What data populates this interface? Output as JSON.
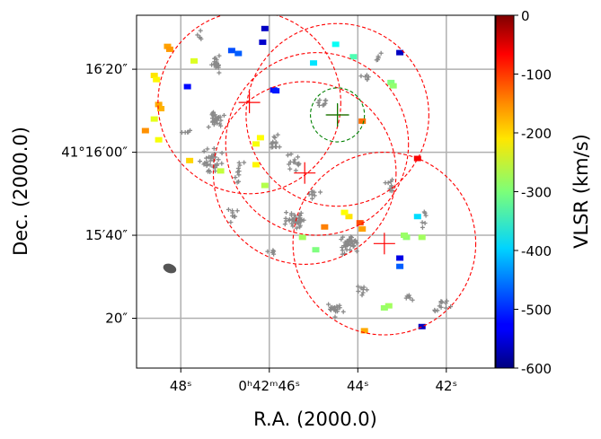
{
  "chart_data": {
    "type": "scatter",
    "title": "",
    "xlabel": "R.A. (2000.0)",
    "ylabel": "Dec. (2000.0)",
    "x_unit": "seconds of R.A. past 0h42m",
    "y_unit": "arcseconds of Dec. past 41°15′",
    "xlim": [
      49.0,
      40.9
    ],
    "ylim": [
      8.0,
      93.0
    ],
    "x_ticks": [
      {
        "value": 48,
        "label": "48ˢ"
      },
      {
        "value": 46,
        "label": "0ʰ42ᵐ46ˢ"
      },
      {
        "value": 44,
        "label": "44ˢ"
      },
      {
        "value": 42,
        "label": "42ˢ"
      }
    ],
    "y_ticks": [
      {
        "value": 20,
        "label": "20″"
      },
      {
        "value": 40,
        "label": "15′40″"
      },
      {
        "value": 60,
        "label": "41°16′00″"
      },
      {
        "value": 80,
        "label": "16′20″"
      }
    ],
    "grid": true,
    "colorbar": {
      "label": "VLSR (km/s)",
      "range": [
        -600,
        0
      ],
      "colormap": "jet",
      "ticks": [
        0,
        -100,
        -200,
        -300,
        -400,
        -500,
        -600
      ],
      "tick_labels": [
        "0",
        "-100",
        "-200",
        "-300",
        "-400",
        "-500",
        "-600"
      ]
    },
    "circles": [
      {
        "name": "field-1",
        "ra_s": 46.45,
        "dec_s": 72.0,
        "radius_arcsec": 22.0,
        "color": "#ff0000",
        "style": "dashed",
        "cross": true
      },
      {
        "name": "field-2",
        "ra_s": 44.46,
        "dec_s": 69.0,
        "radius_arcsec": 22.0,
        "color": "#ff0000",
        "style": "dashed",
        "cross": true
      },
      {
        "name": "field-3",
        "ra_s": 44.92,
        "dec_s": 62.0,
        "radius_arcsec": 22.0,
        "color": "#ff0000",
        "style": "dashed",
        "cross": false
      },
      {
        "name": "field-4",
        "ra_s": 45.2,
        "dec_s": 55.0,
        "radius_arcsec": 22.0,
        "color": "#ff0000",
        "style": "dashed",
        "cross": true
      },
      {
        "name": "field-5",
        "ra_s": 43.4,
        "dec_s": 38.0,
        "radius_arcsec": 22.0,
        "color": "#ff0000",
        "style": "dashed",
        "cross": true
      },
      {
        "name": "target",
        "ra_s": 44.46,
        "dec_s": 69.0,
        "radius_arcsec": 6.5,
        "color": "#008000",
        "style": "dashed",
        "cross": true
      }
    ],
    "gray_clumps": [
      {
        "ra": 47.2,
        "dec": 81,
        "n": 20,
        "sx": 0.11,
        "sy": 1.5
      },
      {
        "ra": 47.2,
        "dec": 68,
        "n": 28,
        "sx": 0.14,
        "sy": 1.4
      },
      {
        "ra": 47.3,
        "dec": 58,
        "n": 34,
        "sx": 0.15,
        "sy": 2.0
      },
      {
        "ra": 46.7,
        "dec": 55,
        "n": 10,
        "sx": 0.1,
        "sy": 2.0
      },
      {
        "ra": 45.9,
        "dec": 61,
        "n": 14,
        "sx": 0.1,
        "sy": 2.0
      },
      {
        "ra": 45.4,
        "dec": 58,
        "n": 14,
        "sx": 0.12,
        "sy": 1.5
      },
      {
        "ra": 45.4,
        "dec": 44,
        "n": 36,
        "sx": 0.16,
        "sy": 1.2
      },
      {
        "ra": 45.0,
        "dec": 50,
        "n": 8,
        "sx": 0.1,
        "sy": 1.0
      },
      {
        "ra": 44.2,
        "dec": 38,
        "n": 42,
        "sx": 0.15,
        "sy": 1.5
      },
      {
        "ra": 43.3,
        "dec": 52,
        "n": 10,
        "sx": 0.1,
        "sy": 1.2
      },
      {
        "ra": 43.8,
        "dec": 78,
        "n": 6,
        "sx": 0.08,
        "sy": 1.0
      },
      {
        "ra": 44.8,
        "dec": 72,
        "n": 8,
        "sx": 0.1,
        "sy": 1.0
      },
      {
        "ra": 44.5,
        "dec": 22,
        "n": 18,
        "sx": 0.1,
        "sy": 1.4
      },
      {
        "ra": 43.9,
        "dec": 27,
        "n": 8,
        "sx": 0.1,
        "sy": 1.0
      },
      {
        "ra": 42.9,
        "dec": 25,
        "n": 6,
        "sx": 0.1,
        "sy": 1.0
      },
      {
        "ra": 42.1,
        "dec": 23,
        "n": 12,
        "sx": 0.14,
        "sy": 1.2
      },
      {
        "ra": 47.9,
        "dec": 65,
        "n": 5,
        "sx": 0.08,
        "sy": 1.0
      },
      {
        "ra": 46.8,
        "dec": 45,
        "n": 8,
        "sx": 0.1,
        "sy": 1.5
      },
      {
        "ra": 42.5,
        "dec": 44,
        "n": 6,
        "sx": 0.1,
        "sy": 1.5
      },
      {
        "ra": 46.0,
        "dec": 36,
        "n": 5,
        "sx": 0.08,
        "sy": 1.0
      },
      {
        "ra": 47.5,
        "dec": 88,
        "n": 5,
        "sx": 0.1,
        "sy": 1.0
      },
      {
        "ra": 43.5,
        "dec": 83,
        "n": 5,
        "sx": 0.1,
        "sy": 1.0
      }
    ],
    "colored_points": [
      {
        "ra": 48.3,
        "dec": 85.5,
        "v": -170
      },
      {
        "ra": 48.25,
        "dec": 84.8,
        "v": -165
      },
      {
        "ra": 48.6,
        "dec": 78.5,
        "v": -210
      },
      {
        "ra": 48.55,
        "dec": 77.5,
        "v": -220
      },
      {
        "ra": 48.5,
        "dec": 71.5,
        "v": -175
      },
      {
        "ra": 48.45,
        "dec": 70.5,
        "v": -180
      },
      {
        "ra": 48.8,
        "dec": 65.2,
        "v": -160
      },
      {
        "ra": 48.6,
        "dec": 68.0,
        "v": -240
      },
      {
        "ra": 47.85,
        "dec": 75.8,
        "v": -520
      },
      {
        "ra": 47.7,
        "dec": 82.0,
        "v": -245
      },
      {
        "ra": 46.85,
        "dec": 84.5,
        "v": -480
      },
      {
        "ra": 46.7,
        "dec": 83.8,
        "v": -470
      },
      {
        "ra": 46.1,
        "dec": 89.8,
        "v": -560
      },
      {
        "ra": 46.15,
        "dec": 86.5,
        "v": -555
      },
      {
        "ra": 45.9,
        "dec": 75.0,
        "v": -520
      },
      {
        "ra": 45.85,
        "dec": 74.8,
        "v": -510
      },
      {
        "ra": 46.3,
        "dec": 62.0,
        "v": -230
      },
      {
        "ra": 46.2,
        "dec": 63.5,
        "v": -225
      },
      {
        "ra": 46.3,
        "dec": 57.0,
        "v": -220
      },
      {
        "ra": 47.1,
        "dec": 55.5,
        "v": -260
      },
      {
        "ra": 46.1,
        "dec": 52.0,
        "v": -270
      },
      {
        "ra": 45.25,
        "dec": 39.5,
        "v": -280
      },
      {
        "ra": 44.95,
        "dec": 36.5,
        "v": -300
      },
      {
        "ra": 44.5,
        "dec": 86.0,
        "v": -370
      },
      {
        "ra": 45.0,
        "dec": 81.5,
        "v": -390
      },
      {
        "ra": 44.1,
        "dec": 83.0,
        "v": -330
      },
      {
        "ra": 43.25,
        "dec": 76.8,
        "v": -300
      },
      {
        "ra": 43.2,
        "dec": 76.0,
        "v": -290
      },
      {
        "ra": 43.9,
        "dec": 67.5,
        "v": -140
      },
      {
        "ra": 43.05,
        "dec": 84.0,
        "v": -560
      },
      {
        "ra": 42.65,
        "dec": 58.5,
        "v": -70
      },
      {
        "ra": 43.9,
        "dec": 41.5,
        "v": -170
      },
      {
        "ra": 44.2,
        "dec": 44.5,
        "v": -210
      },
      {
        "ra": 44.3,
        "dec": 45.5,
        "v": -225
      },
      {
        "ra": 44.75,
        "dec": 42.0,
        "v": -150
      },
      {
        "ra": 42.9,
        "dec": 39.5,
        "v": -290
      },
      {
        "ra": 42.95,
        "dec": 40.0,
        "v": -285
      },
      {
        "ra": 42.65,
        "dec": 44.5,
        "v": -395
      },
      {
        "ra": 42.55,
        "dec": 39.5,
        "v": -280
      },
      {
        "ra": 43.05,
        "dec": 34.5,
        "v": -540
      },
      {
        "ra": 43.05,
        "dec": 32.5,
        "v": -470
      },
      {
        "ra": 43.3,
        "dec": 23.0,
        "v": -280
      },
      {
        "ra": 43.4,
        "dec": 22.5,
        "v": -285
      },
      {
        "ra": 42.55,
        "dec": 18.0,
        "v": -560
      },
      {
        "ra": 43.85,
        "dec": 17.0,
        "v": -175
      },
      {
        "ra": 43.95,
        "dec": 43.0,
        "v": -120
      },
      {
        "ra": 47.8,
        "dec": 58.0,
        "v": -200
      },
      {
        "ra": 48.5,
        "dec": 63.0,
        "v": -230
      }
    ],
    "annotations": [
      {
        "type": "beam-ellipse",
        "ra": 48.25,
        "dec": 32.0,
        "color": "#555555"
      }
    ]
  }
}
